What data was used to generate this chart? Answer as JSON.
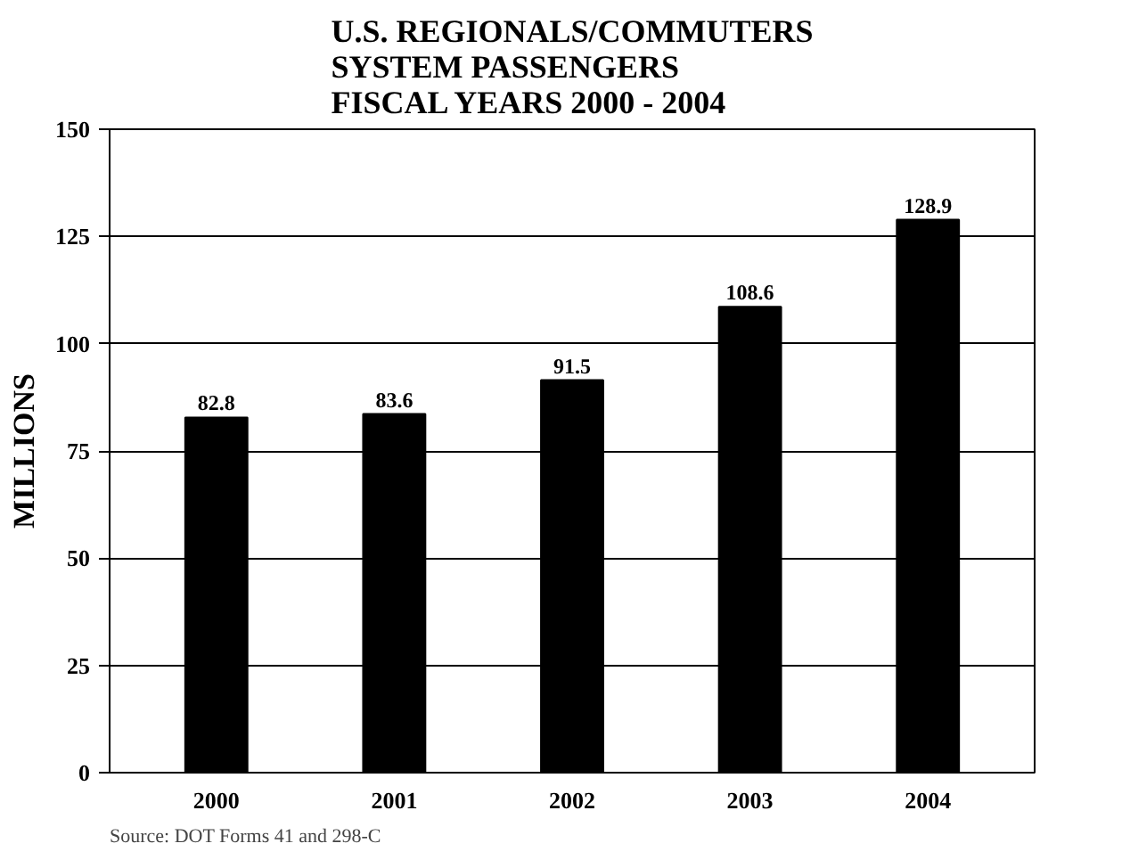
{
  "chart_data": {
    "type": "bar",
    "title": "U.S. REGIONALS/COMMUTERS\nSYSTEM PASSENGERS\nFISCAL YEARS 2000 - 2004",
    "ylabel": "MILLIONS",
    "categories": [
      "2000",
      "2001",
      "2002",
      "2003",
      "2004"
    ],
    "values": [
      82.8,
      83.6,
      91.5,
      108.6,
      128.9
    ],
    "color": "#000000",
    "ylim": [
      0,
      150
    ],
    "yticks": [
      0,
      25,
      50,
      75,
      100,
      125,
      150
    ],
    "grid": "y",
    "data_labels": true,
    "annotations": [
      "Source: DOT Forms 41 and 298-C"
    ]
  }
}
